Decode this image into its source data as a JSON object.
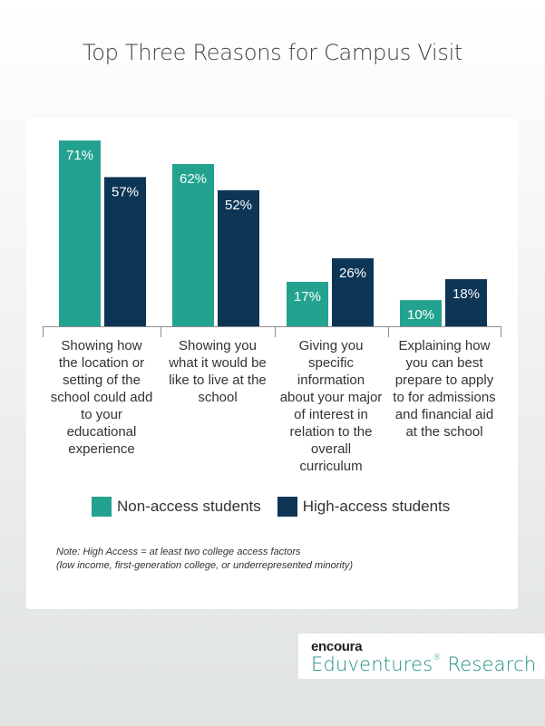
{
  "title": "Top Three Reasons for Campus Visit",
  "colors": {
    "non_access": "#23a38f",
    "high_access": "#0d3556",
    "axis": "#8c8c8c"
  },
  "chart_data": {
    "type": "bar",
    "title": "Top Three Reasons for Campus Visit",
    "categories": [
      "Showing how the location or setting of the school could add to your educational experience",
      "Showing you what it would be like to live at the school",
      "Giving you specific information about your major of interest in relation to the overall curriculum",
      "Explaining how you can best prepare to apply to for admissions and financial aid at the school"
    ],
    "series": [
      {
        "name": "Non-access students",
        "values": [
          71,
          62,
          17,
          10
        ],
        "labels": [
          "71%",
          "62%",
          "17%",
          "10%"
        ]
      },
      {
        "name": "High-access students",
        "values": [
          57,
          52,
          26,
          18
        ],
        "labels": [
          "57%",
          "52%",
          "26%",
          "18%"
        ]
      }
    ],
    "legend": "bottom",
    "grid": false
  },
  "categories_display": [
    [
      "Showing how",
      "the location or",
      "setting of the",
      "school could add",
      "to your",
      "educational",
      "experience"
    ],
    [
      "Showing you",
      "what it would be",
      "like to live at the",
      "school"
    ],
    [
      "Giving you",
      "specific",
      "information",
      "about your major",
      "of interest in",
      "relation to the",
      "overall",
      "curriculum"
    ],
    [
      "Explaining how",
      "you can best",
      "prepare to apply",
      "to for admissions",
      "and financial aid",
      "at the school"
    ]
  ],
  "legend": {
    "non_access": "Non-access students",
    "high_access": "High-access students"
  },
  "note": {
    "line1": "Note: High Access = at least two college access factors",
    "line2": "(low income, first-generation college, or underrepresented minority)"
  },
  "logo": {
    "brand": "encoura",
    "name": "Eduventures",
    "suffix": "Research"
  }
}
